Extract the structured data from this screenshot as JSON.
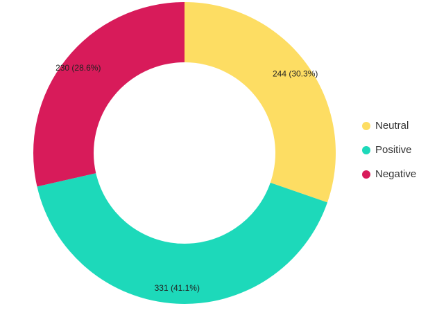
{
  "chart_data": {
    "type": "pie",
    "donut": true,
    "legend": "right",
    "series": [
      {
        "name": "Neutral",
        "value": 244,
        "percent": "30.3%",
        "color": "#FDDD63",
        "label": "244 (30.3%)"
      },
      {
        "name": "Positive",
        "value": 331,
        "percent": "41.1%",
        "color": "#1DD9BA",
        "label": "331 (41.1%)"
      },
      {
        "name": "Negative",
        "value": 230,
        "percent": "28.6%",
        "color": "#D81B5A",
        "label": "230 (28.6%)"
      }
    ]
  }
}
